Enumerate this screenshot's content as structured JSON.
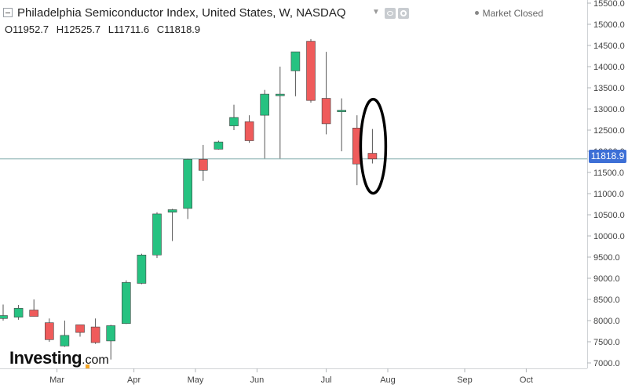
{
  "header": {
    "title": "Philadelphia Semiconductor Index, United States, W, NASDAQ",
    "ohlc": {
      "open_label": "O",
      "open": "11952.7",
      "high_label": "H",
      "high": "12525.7",
      "low_label": "L",
      "low": "11711.6",
      "close_label": "C",
      "close": "11818.9"
    },
    "status": "Market Closed",
    "icons": [
      "collapse-icon",
      "caret-down-icon",
      "eye-icon",
      "gear-icon"
    ]
  },
  "price_tag": "11818.9",
  "logo": {
    "brand": "Investing",
    "suffix": ".com"
  },
  "colors": {
    "up": "#26c281",
    "down": "#ef5b5b",
    "wick": "#555555",
    "price_line": "#7fa8a8",
    "price_tag": "#3d6fd6",
    "annotation": "#000000"
  },
  "chart_data": {
    "type": "candlestick",
    "title": "Philadelphia Semiconductor Index, United States, W, NASDAQ",
    "ylim": [
      6800,
      15500
    ],
    "ytick_labels": [
      "7000.0",
      "7500.0",
      "8000.0",
      "8500.0",
      "9000.0",
      "9500.0",
      "10000.0",
      "10500.0",
      "11000.0",
      "11500.0",
      "12000.0",
      "12500.0",
      "13000.0",
      "13500.0",
      "14000.0",
      "14500.0",
      "15000.0",
      "15500.0"
    ],
    "xtick_labels": [
      "Mar",
      "Apr",
      "May",
      "Jun",
      "Jul",
      "Aug",
      "Sep",
      "Oct"
    ],
    "xtick_positions": [
      3.5,
      8.5,
      12.5,
      16.5,
      21,
      25,
      30,
      34
    ],
    "candles": [
      {
        "i": 0,
        "o": 8050,
        "h": 8380,
        "l": 8000,
        "c": 8120
      },
      {
        "i": 1,
        "o": 8080,
        "h": 8370,
        "l": 8020,
        "c": 8290
      },
      {
        "i": 2,
        "o": 8250,
        "h": 8500,
        "l": 8100,
        "c": 8100
      },
      {
        "i": 3,
        "o": 7950,
        "h": 8050,
        "l": 7500,
        "c": 7550
      },
      {
        "i": 4,
        "o": 7400,
        "h": 8000,
        "l": 7380,
        "c": 7650
      },
      {
        "i": 5,
        "o": 7900,
        "h": 7900,
        "l": 7620,
        "c": 7720
      },
      {
        "i": 6,
        "o": 7850,
        "h": 8050,
        "l": 7450,
        "c": 7480
      },
      {
        "i": 7,
        "o": 7520,
        "h": 7900,
        "l": 7080,
        "c": 7880
      },
      {
        "i": 8,
        "o": 7930,
        "h": 8950,
        "l": 7920,
        "c": 8900
      },
      {
        "i": 9,
        "o": 8880,
        "h": 9580,
        "l": 8860,
        "c": 9550
      },
      {
        "i": 10,
        "o": 9550,
        "h": 10560,
        "l": 9480,
        "c": 10520
      },
      {
        "i": 11,
        "o": 10560,
        "h": 10640,
        "l": 9880,
        "c": 10620
      },
      {
        "i": 12,
        "o": 10650,
        "h": 11820,
        "l": 10400,
        "c": 11810
      },
      {
        "i": 13,
        "o": 11810,
        "h": 12150,
        "l": 11300,
        "c": 11550
      },
      {
        "i": 14,
        "o": 12050,
        "h": 12250,
        "l": 12040,
        "c": 12220
      },
      {
        "i": 15,
        "o": 12600,
        "h": 13100,
        "l": 12500,
        "c": 12800
      },
      {
        "i": 16,
        "o": 12700,
        "h": 12850,
        "l": 12200,
        "c": 12250
      },
      {
        "i": 17,
        "o": 12850,
        "h": 13450,
        "l": 11830,
        "c": 13350
      },
      {
        "i": 18,
        "o": 13350,
        "h": 14000,
        "l": 11830,
        "c": 13350
      },
      {
        "i": 19,
        "o": 13900,
        "h": 14350,
        "l": 13300,
        "c": 14350
      },
      {
        "i": 20,
        "o": 14600,
        "h": 14650,
        "l": 13150,
        "c": 13200
      },
      {
        "i": 21,
        "o": 13250,
        "h": 14350,
        "l": 12400,
        "c": 12650
      },
      {
        "i": 22,
        "o": 12950,
        "h": 13250,
        "l": 12000,
        "c": 12970
      },
      {
        "i": 23,
        "o": 12550,
        "h": 12850,
        "l": 11200,
        "c": 11700
      },
      {
        "i": 24,
        "o": 11953,
        "h": 12526,
        "l": 11712,
        "c": 11819
      }
    ],
    "current_price": 11818.9,
    "annotation": {
      "type": "ellipse",
      "target_candle": 24
    }
  }
}
